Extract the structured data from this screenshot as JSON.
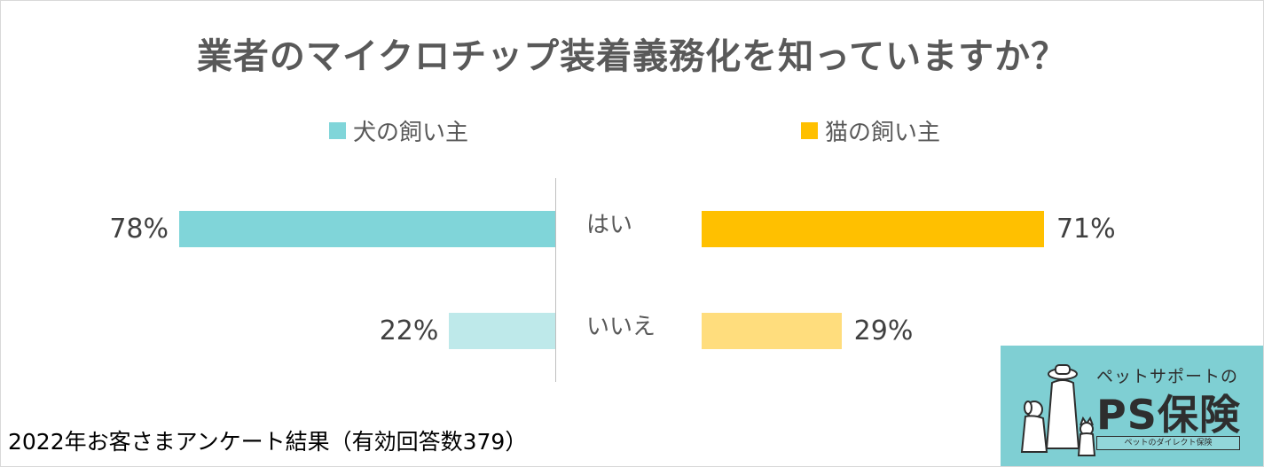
{
  "chart_data": {
    "type": "bar",
    "orientation": "horizontal-butterfly",
    "title": "業者のマイクロチップ装着義務化を知っていますか？",
    "categories": [
      "はい",
      "いいえ"
    ],
    "unit": "%",
    "xlim": [
      0,
      100
    ],
    "legend_placement": "top",
    "grid": false,
    "series": [
      {
        "name": "犬の飼い主",
        "values": [
          78,
          22
        ],
        "labels": [
          "78%",
          "22%"
        ],
        "color": "#80d5d9",
        "light_color": "#bee9ea"
      },
      {
        "name": "猫の飼い主",
        "values": [
          71,
          29
        ],
        "labels": [
          "71%",
          "29%"
        ],
        "color": "#ffc000",
        "light_color": "#ffdd7d"
      }
    ]
  },
  "footnote": "2022年お客さまアンケート結果（有効回答数379）",
  "logo": {
    "sub": "ペットサポートの",
    "main": "PS保険",
    "tagline": "ペットのダイレクト保険",
    "background": "#7fcfd3"
  }
}
